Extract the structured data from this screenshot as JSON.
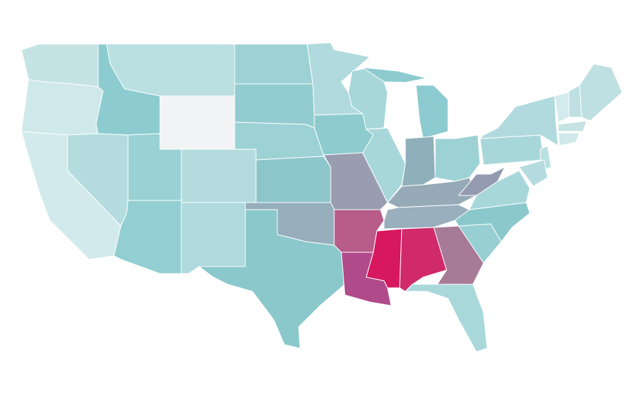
{
  "map": {
    "background": "#ffffff",
    "border_color": "#ffffff",
    "regions": [
      {
        "color": "#c5e3e5"
      },
      {
        "color": "#cfe8ea"
      },
      {
        "color": "#d2eaec"
      },
      {
        "color": "#8ccbcf"
      },
      {
        "color": "#b4dcdf"
      },
      {
        "color": "#b9dfe1"
      },
      {
        "color": "#f2f3f4"
      },
      {
        "color": "#99d1d4"
      },
      {
        "color": "#b4dcdf"
      },
      {
        "color": "#93cfd2"
      },
      {
        "color": "#b0dadd"
      },
      {
        "color": "#9dd2d5"
      },
      {
        "color": "#93ccd0"
      },
      {
        "color": "#9dd2d5"
      },
      {
        "color": "#8cc6ca"
      },
      {
        "color": "#96aebb"
      },
      {
        "color": "#8ac8cb"
      },
      {
        "color": "#b0dadd"
      },
      {
        "color": "#8dcbcf"
      },
      {
        "color": "#9a9cb0"
      },
      {
        "color": "#b85c8a"
      },
      {
        "color": "#b04a8a"
      },
      {
        "color": "#a8d7da"
      },
      {
        "color": "#a8d7da"
      },
      {
        "color": "#8ccbcf"
      },
      {
        "color": "#8ccbcf"
      },
      {
        "color": "#8fb0ba"
      },
      {
        "color": "#9dd2d5"
      },
      {
        "color": "#96aab8"
      },
      {
        "color": "#9aafbd"
      },
      {
        "color": "#d7175e"
      },
      {
        "color": "#d12a6b"
      },
      {
        "color": "#a77b98"
      },
      {
        "color": "#a9d8db"
      },
      {
        "color": "#97cfd2"
      },
      {
        "color": "#8ac8cb"
      },
      {
        "color": "#a8d7da"
      },
      {
        "color": "#949bb0"
      },
      {
        "color": "#a8d7da"
      },
      {
        "color": "#b0dadd"
      },
      {
        "color": "#d4ebed"
      },
      {
        "color": "#bfe0e2"
      },
      {
        "color": "#bfe0e2"
      },
      {
        "color": "#c5e3e5"
      },
      {
        "color": "#cfe8ea"
      },
      {
        "color": "#b9dfe1"
      },
      {
        "color": "#b5dbde"
      }
    ]
  }
}
